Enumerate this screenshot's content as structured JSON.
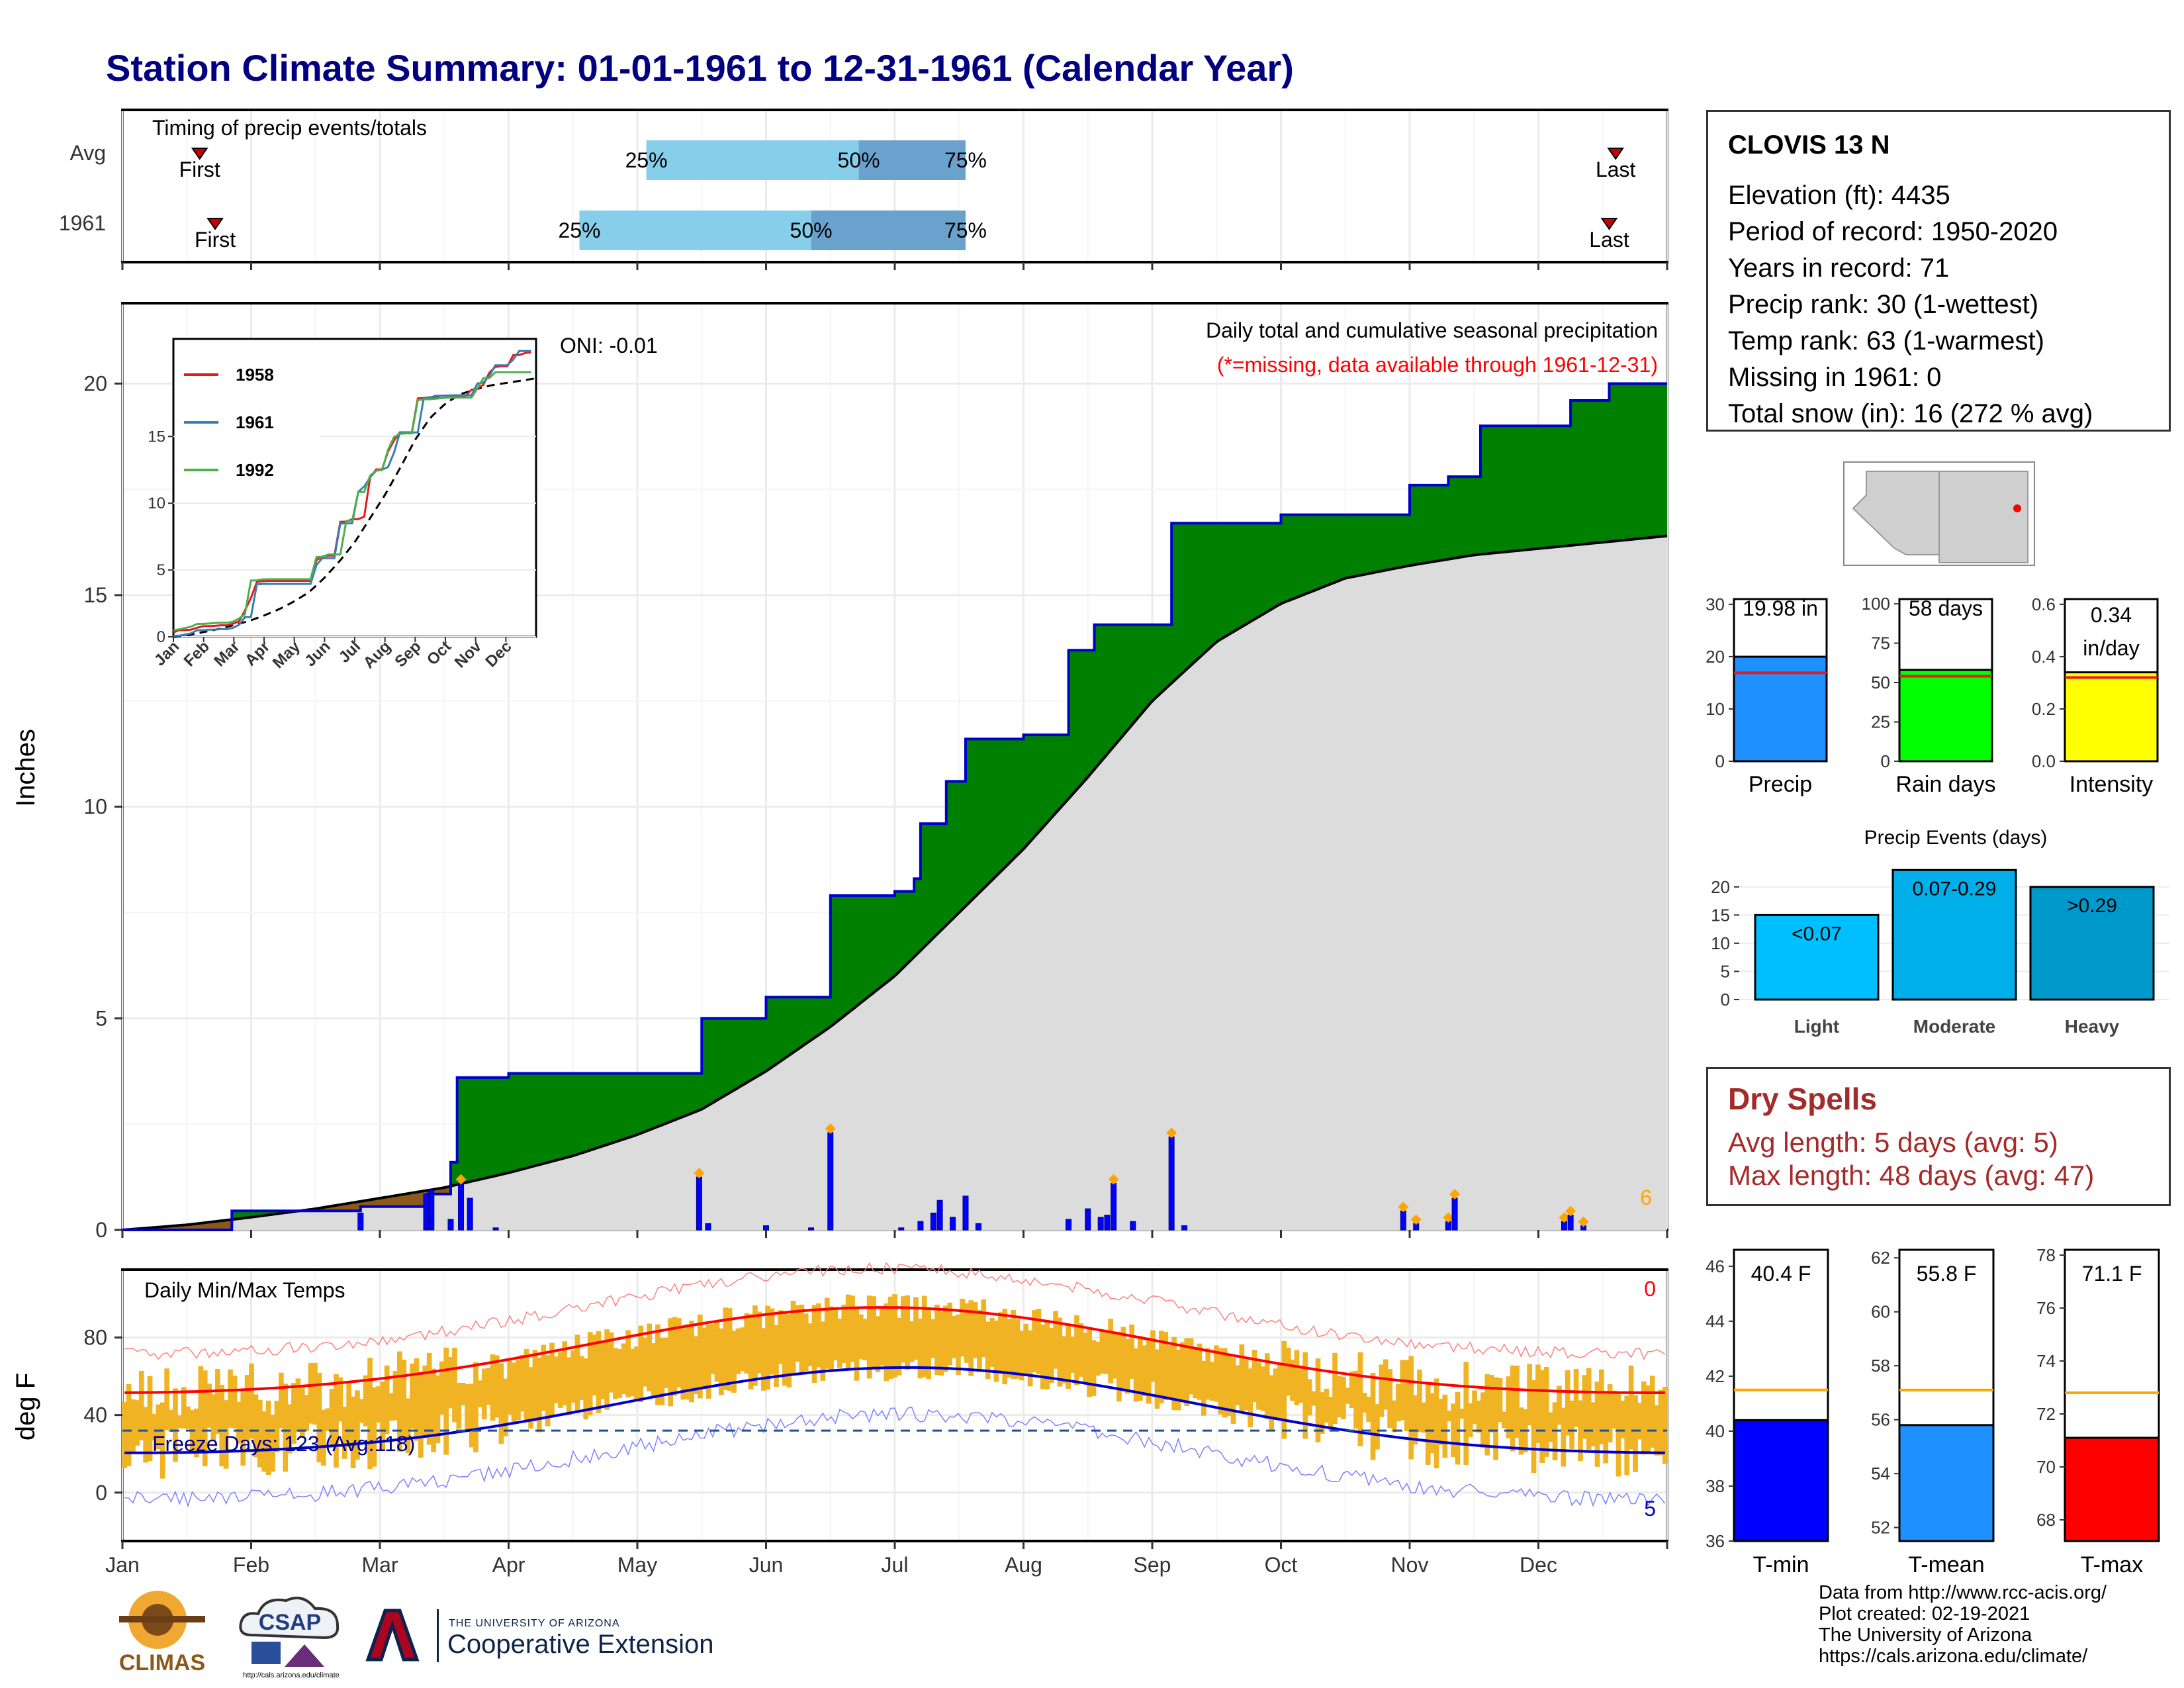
{
  "title": "Station Climate Summary: 01-01-1961 to 12-31-1961 (Calendar Year)",
  "timing": {
    "label": "Timing of precip events/totals",
    "rows": [
      {
        "name": "Avg",
        "first": "First",
        "last": "Last",
        "q25": "25%",
        "q50": "50%",
        "q75": "75%",
        "first_month": 1.6,
        "last_month": 12.6,
        "p25_month": 5.07,
        "p50_month": 6.72,
        "p75_month": 7.55
      },
      {
        "name": "1961",
        "first": "First",
        "last": "Last",
        "q25": "25%",
        "q50": "50%",
        "q75": "75%",
        "first_month": 1.72,
        "last_month": 12.55,
        "p25_month": 4.55,
        "p50_month": 6.35,
        "p75_month": 7.55
      }
    ]
  },
  "precip_panel": {
    "ylabel": "Inches",
    "yticks": [
      0,
      5,
      10,
      15,
      20
    ],
    "ylim": [
      0,
      21.9
    ],
    "note1": "Daily total and cumulative seasonal precipitation",
    "note2": "(*=missing, data available through 1961-12-31)",
    "oni": "ONI: -0.01",
    "count_label": "6",
    "colors": {
      "above": "#008000",
      "below": "#8b5a1a",
      "normal": "#dcdcdc",
      "line": "#0000cd",
      "bars": "#0000ff",
      "marker": "#ffa500"
    }
  },
  "inset": {
    "yticks": [
      0,
      5,
      10,
      15
    ],
    "months": [
      "Jan",
      "Feb",
      "Mar",
      "Apr",
      "May",
      "Jun",
      "Jul",
      "Aug",
      "Sep",
      "Oct",
      "Nov",
      "Dec"
    ],
    "legend": [
      {
        "name": "1958",
        "color": "#e41a1c"
      },
      {
        "name": "1961",
        "color": "#377eb8"
      },
      {
        "name": "1992",
        "color": "#4daf4a"
      }
    ]
  },
  "temp_panel": {
    "ylabel": "deg F",
    "label": "Daily Min/Max Temps",
    "freeze": "Freeze Days: 123 (Avg:118)",
    "yticks": [
      0,
      40,
      80
    ],
    "ylim": [
      -25,
      115
    ],
    "hot_count": "0",
    "cold_count": "5",
    "freeze_line": 32,
    "colors": {
      "bars": "#f0b323",
      "max": "#ff0000",
      "min": "#0000cd"
    }
  },
  "months": [
    "Jan",
    "Feb",
    "Mar",
    "Apr",
    "May",
    "Jun",
    "Jul",
    "Aug",
    "Sep",
    "Oct",
    "Nov",
    "Dec"
  ],
  "station": {
    "name": "CLOVIS 13 N",
    "lines": [
      "Elevation (ft): 4435",
      "Period of record: 1950-2020",
      "Years in record: 71",
      "Precip rank: 30 (1-wettest)",
      "Temp rank: 63 (1-warmest)",
      "Missing in 1961: 0",
      "Total snow (in): 16 (272 % avg)"
    ]
  },
  "mini_bars": [
    {
      "label": "Precip",
      "value": 19.98,
      "value_text": "19.98 in",
      "avg": 16.9,
      "ymax": 31,
      "ticks": [
        0,
        10,
        20,
        30
      ],
      "tick_labels": [
        "0",
        "10",
        "20",
        "30"
      ],
      "color": "#1e90ff"
    },
    {
      "label": "Rain days",
      "value": 58,
      "value_text": "58 days",
      "avg": 54,
      "ymax": 103,
      "ticks": [
        0,
        25,
        50,
        75,
        100
      ],
      "tick_labels": [
        "0",
        "25",
        "50",
        "75",
        "100"
      ],
      "color": "#00ff00"
    },
    {
      "label": "Intensity",
      "value": 0.34,
      "value_text": "0.34 in/day",
      "avg": 0.32,
      "ymax": 0.62,
      "ticks": [
        0,
        0.2,
        0.4,
        0.6
      ],
      "tick_labels": [
        "0.0",
        "0.2",
        "0.4",
        "0.6"
      ],
      "color": "#ffff00"
    }
  ],
  "precip_events": {
    "title": "Precip Events (days)",
    "ymax": 23.5,
    "ticks": [
      0,
      5,
      10,
      15,
      20
    ],
    "bars": [
      {
        "name": "Light",
        "value": 15,
        "text": "<0.07",
        "color": "#00bfff"
      },
      {
        "name": "Moderate",
        "value": 23,
        "text": "0.07-0.29",
        "color": "#00aeea"
      },
      {
        "name": "Heavy",
        "value": 20,
        "text": ">0.29",
        "color": "#0099cc"
      }
    ]
  },
  "dry_spells": {
    "title": "Dry Spells",
    "avg": "Avg length: 5 days (avg: 5)",
    "max": "Max length: 48 days (avg: 47)"
  },
  "temp_bars": [
    {
      "label": "T-min",
      "value": 40.4,
      "value_text": "40.4 F",
      "avg": 41.5,
      "ymin": 36,
      "ymax": 46.6,
      "ticks": [
        36,
        38,
        40,
        42,
        44,
        46
      ],
      "color": "#0000ff"
    },
    {
      "label": "T-mean",
      "value": 55.8,
      "value_text": "55.8 F",
      "avg": 57.1,
      "ymin": 51.5,
      "ymax": 62.3,
      "ticks": [
        52,
        54,
        56,
        58,
        60,
        62
      ],
      "color": "#1e90ff"
    },
    {
      "label": "T-max",
      "value": 71.1,
      "value_text": "71.1 F",
      "avg": 72.8,
      "ymin": 67.2,
      "ymax": 78.2,
      "ticks": [
        68,
        70,
        72,
        74,
        76,
        78
      ],
      "color": "#ff0000"
    }
  ],
  "credits": [
    "Data from http://www.rcc-acis.org/",
    "Plot created: 02-19-2021",
    "The University of Arizona",
    "https://cals.arizona.edu/climate/"
  ],
  "logos": {
    "climas": "CLIMAS",
    "csap": "CSAP",
    "csap_url": "http://cals.arizona.edu/climate",
    "ua_small": "THE UNIVERSITY OF ARIZONA",
    "ua_big": "Cooperative Extension"
  },
  "chart_data": {
    "type": "area",
    "title": "Station Climate Summary: 01-01-1961 to 12-31-1961 (Calendar Year)",
    "ylabel": "Inches",
    "ylim": [
      0,
      21.9
    ],
    "series": [
      {
        "name": "1961 cumulative",
        "x_month": [
          1,
          1.85,
          2.85,
          3.37,
          3.55,
          3.6,
          4.0,
          4.55,
          5.48,
          5.5,
          5.55,
          6.0,
          6.47,
          6.5,
          6.55,
          7.0,
          7.15,
          7.2,
          7.4,
          7.55,
          7.7,
          8.0,
          8.35,
          8.55,
          8.7,
          9.12,
          9.15,
          10.0,
          10.9,
          11.0,
          11.3,
          11.55,
          12.2,
          12.25,
          12.55,
          13
        ],
        "values": [
          0,
          0.45,
          0.55,
          0.85,
          1.6,
          3.6,
          3.7,
          3.7,
          3.7,
          5.0,
          5.0,
          5.5,
          5.5,
          7.9,
          7.9,
          8.0,
          8.3,
          9.6,
          10.6,
          11.6,
          11.6,
          11.7,
          13.7,
          14.3,
          14.3,
          14.3,
          16.7,
          16.9,
          16.9,
          17.6,
          17.8,
          19.0,
          19.0,
          19.6,
          20.0,
          20.0
        ]
      },
      {
        "name": "Average cumulative",
        "x_month": [
          1,
          1.5,
          2,
          2.5,
          3,
          3.5,
          4,
          4.5,
          5,
          5.5,
          6,
          6.5,
          7,
          7.5,
          8,
          8.5,
          9,
          9.5,
          10,
          10.5,
          11,
          11.5,
          12,
          12.5,
          13
        ],
        "values": [
          0,
          0.12,
          0.3,
          0.5,
          0.75,
          1.0,
          1.35,
          1.75,
          2.25,
          2.85,
          3.75,
          4.8,
          6.0,
          7.5,
          9.0,
          10.7,
          12.5,
          13.9,
          14.8,
          15.4,
          15.7,
          15.95,
          16.1,
          16.25,
          16.4
        ]
      }
    ],
    "daily_bars_month": [
      [
        2.85,
        0.4
      ],
      [
        3.36,
        0.85
      ],
      [
        3.4,
        0.95
      ],
      [
        3.55,
        0.25
      ],
      [
        3.63,
        1.1
      ],
      [
        3.7,
        0.75
      ],
      [
        3.9,
        0.05
      ],
      [
        5.48,
        1.25
      ],
      [
        5.55,
        0.15
      ],
      [
        6.0,
        0.1
      ],
      [
        6.35,
        0.05
      ],
      [
        6.5,
        2.3
      ],
      [
        7.05,
        0.05
      ],
      [
        7.2,
        0.2
      ],
      [
        7.3,
        0.4
      ],
      [
        7.35,
        0.7
      ],
      [
        7.45,
        0.3
      ],
      [
        7.55,
        0.8
      ],
      [
        7.65,
        0.15
      ],
      [
        8.35,
        0.25
      ],
      [
        8.5,
        0.5
      ],
      [
        8.6,
        0.3
      ],
      [
        8.65,
        0.35
      ],
      [
        8.7,
        1.1
      ],
      [
        8.85,
        0.2
      ],
      [
        9.15,
        2.2
      ],
      [
        9.25,
        0.1
      ],
      [
        10.95,
        0.45
      ],
      [
        11.05,
        0.15
      ],
      [
        11.3,
        0.2
      ],
      [
        11.35,
        0.75
      ],
      [
        12.2,
        0.2
      ],
      [
        12.25,
        0.35
      ],
      [
        12.35,
        0.1
      ]
    ],
    "temperature": {
      "ylabel": "deg F",
      "ylim": [
        -25,
        115
      ],
      "freeze_line": 32
    }
  }
}
